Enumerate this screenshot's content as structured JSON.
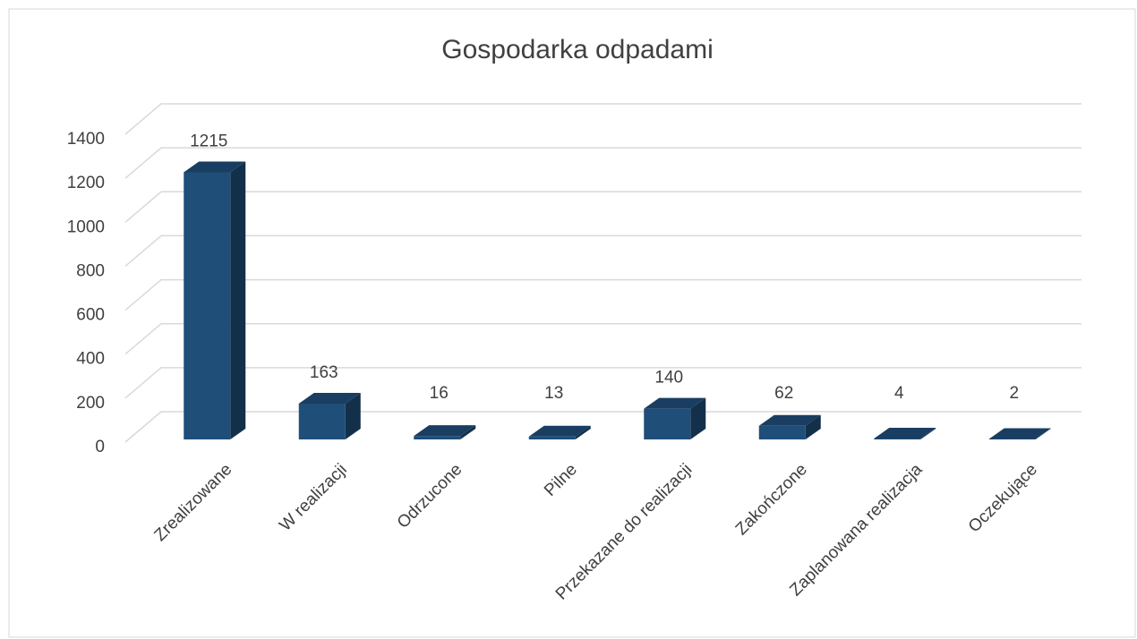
{
  "chart_data": {
    "type": "bar3d",
    "title": "Gospodarka odpadami",
    "categories": [
      "Zrealizowane",
      "W realizacji",
      "Odrzucone",
      "Pilne",
      "Przekazane do realizacji",
      "Zakończone",
      "Zaplanowana realizacja",
      "Oczekujące"
    ],
    "values": [
      1215,
      163,
      16,
      13,
      140,
      62,
      4,
      2
    ],
    "color": "#1f4e79",
    "ylim": [
      0,
      1400
    ],
    "yticks": [
      0,
      200,
      400,
      600,
      800,
      1000,
      1200,
      1400
    ],
    "grid": true
  }
}
